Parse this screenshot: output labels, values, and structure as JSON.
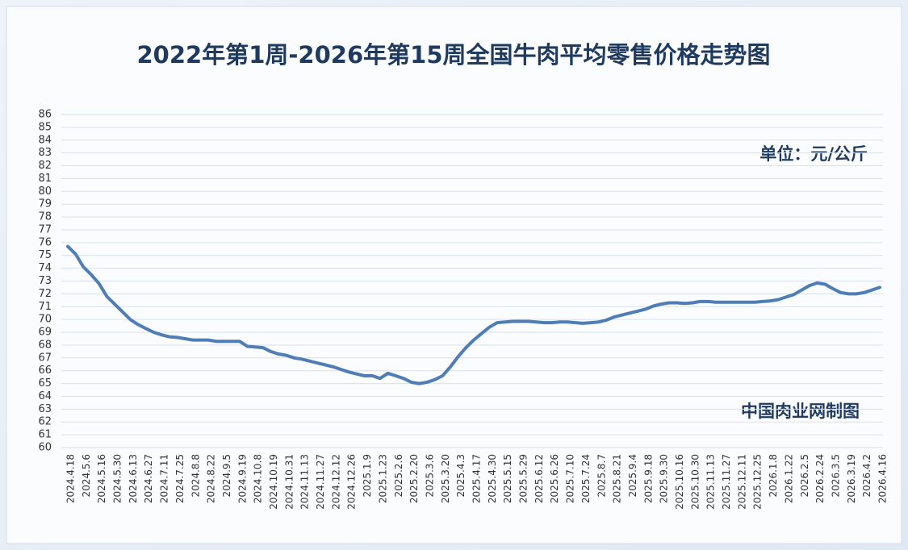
{
  "chart_data": {
    "type": "line",
    "title": "2022年第1周-2026年第15周全国牛肉平均零售价格走势图",
    "unit_note": "单位：元/公斤",
    "source_note": "中国肉业网制图",
    "categories": [
      "2024.4.18",
      null,
      "2024.5.6",
      null,
      "2024.5.16",
      null,
      "2024.5.30",
      null,
      "2024.6.13",
      null,
      "2024.6.27",
      null,
      "2024.7.11",
      null,
      "2024.7.25",
      null,
      "2024.8.8",
      null,
      "2024.8.22",
      null,
      "2024.9.5",
      null,
      "2024.9.19",
      null,
      "2024.10.8",
      null,
      "2024.10.19",
      null,
      "2024.10.31",
      null,
      "2024.11.13",
      null,
      "2024.11.27",
      null,
      "2024.12.12",
      null,
      "2024.12.26",
      null,
      "2025.1.9",
      null,
      "2025.1.23",
      null,
      "2025.2.6",
      null,
      "2025.2.20",
      null,
      "2025.3.6",
      null,
      "2025.3.20",
      null,
      "2025.4.3",
      null,
      "2025.4.17",
      null,
      "2025.4.30",
      null,
      "2025.5.15",
      null,
      "2025.5.29",
      null,
      "2025.6.12",
      null,
      "2025.6.26",
      null,
      "2025.7.10",
      null,
      "2025.7.24",
      null,
      "2025.8.7",
      null,
      "2025.8.21",
      null,
      "2025.9.4",
      null,
      "2025.9.18",
      null,
      "2025.9.30",
      null,
      "2025.10.16",
      null,
      "2025.10.30",
      null,
      "2025.11.13",
      null,
      "2025.11.27",
      null,
      "2025.12.11",
      null,
      "2025.12.25",
      null,
      "2026.1.8",
      null,
      "2026.1.22",
      null,
      "2026.2.5",
      null,
      "2026.2.24",
      null,
      "2026.3.5",
      null,
      "2026.3.19",
      null,
      "2026.4.2",
      null,
      "2026.4.16"
    ],
    "series": [
      {
        "name": "全国牛肉平均零售价格",
        "color": "#4f7db5",
        "values": [
          75.7,
          75.1,
          74.1,
          73.5,
          72.8,
          71.8,
          71.2,
          70.6,
          70.0,
          69.6,
          69.3,
          69.0,
          68.8,
          68.65,
          68.6,
          68.5,
          68.4,
          68.4,
          68.4,
          68.3,
          68.3,
          68.3,
          68.3,
          67.9,
          67.85,
          67.8,
          67.5,
          67.3,
          67.2,
          67.0,
          66.9,
          66.75,
          66.6,
          66.45,
          66.3,
          66.1,
          65.9,
          65.75,
          65.6,
          65.6,
          65.4,
          65.8,
          65.6,
          65.4,
          65.1,
          65.0,
          65.1,
          65.3,
          65.6,
          66.3,
          67.1,
          67.8,
          68.4,
          68.9,
          69.4,
          69.75,
          69.8,
          69.85,
          69.85,
          69.85,
          69.8,
          69.75,
          69.75,
          69.8,
          69.8,
          69.75,
          69.7,
          69.75,
          69.8,
          69.95,
          70.2,
          70.35,
          70.5,
          70.65,
          70.8,
          71.05,
          71.2,
          71.3,
          71.3,
          71.25,
          71.3,
          71.4,
          71.4,
          71.35,
          71.35,
          71.35,
          71.35,
          71.35,
          71.35,
          71.4,
          71.45,
          71.55,
          71.75,
          71.95,
          72.3,
          72.65,
          72.85,
          72.75,
          72.4,
          72.1,
          72.0,
          72.0,
          72.1,
          72.3,
          72.5
        ]
      }
    ],
    "ylim": [
      60,
      86
    ],
    "yticks": [
      60,
      61,
      62,
      63,
      64,
      65,
      66,
      67,
      68,
      69,
      70,
      71,
      72,
      73,
      74,
      75,
      76,
      77,
      78,
      79,
      80,
      81,
      82,
      83,
      84,
      85,
      86
    ],
    "grid": true
  }
}
